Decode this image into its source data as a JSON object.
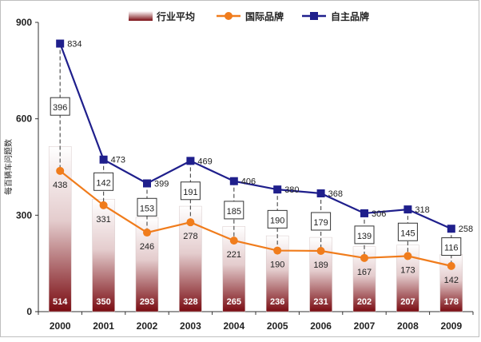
{
  "chart_data": {
    "type": "bar",
    "categories": [
      "2000",
      "2001",
      "2002",
      "2003",
      "2004",
      "2005",
      "2006",
      "2007",
      "2008",
      "2009"
    ],
    "ylabel": "每百辆车问题数",
    "ylim": [
      0,
      900
    ],
    "yticks": [
      "0",
      "300",
      "600",
      "900"
    ],
    "legend": {
      "placement": "top-center",
      "items": [
        {
          "name": "行业平均",
          "kind": "bar"
        },
        {
          "name": "国际品牌",
          "kind": "line-circle"
        },
        {
          "name": "自主品牌",
          "kind": "line-square"
        }
      ]
    },
    "series": [
      {
        "name": "行业平均",
        "type": "bar",
        "values": [
          514,
          350,
          293,
          328,
          265,
          236,
          231,
          202,
          207,
          178
        ],
        "labels": [
          "514",
          "350",
          "293",
          "328",
          "265",
          "236",
          "231",
          "202",
          "207",
          "178"
        ]
      },
      {
        "name": "国际品牌",
        "type": "line",
        "values": [
          438,
          331,
          246,
          278,
          221,
          190,
          189,
          167,
          173,
          142
        ],
        "labels": [
          "438",
          "331",
          "246",
          "278",
          "221",
          "190",
          "189",
          "167",
          "173",
          "142"
        ]
      },
      {
        "name": "自主品牌",
        "type": "line",
        "values": [
          834,
          473,
          399,
          469,
          406,
          380,
          368,
          306,
          318,
          258
        ],
        "labels": [
          "834",
          "473",
          "399",
          "469",
          "406",
          "380",
          "368",
          "306",
          "318",
          "258"
        ]
      }
    ],
    "gap_labels": [
      "396",
      "142",
      "153",
      "191",
      "185",
      "190",
      "179",
      "139",
      "145",
      "116"
    ],
    "colors": {
      "bar_dark": "#7a0c12",
      "bar_light": "#ffffff",
      "intl": "#f07c1c",
      "domestic": "#1f1f8c"
    }
  }
}
